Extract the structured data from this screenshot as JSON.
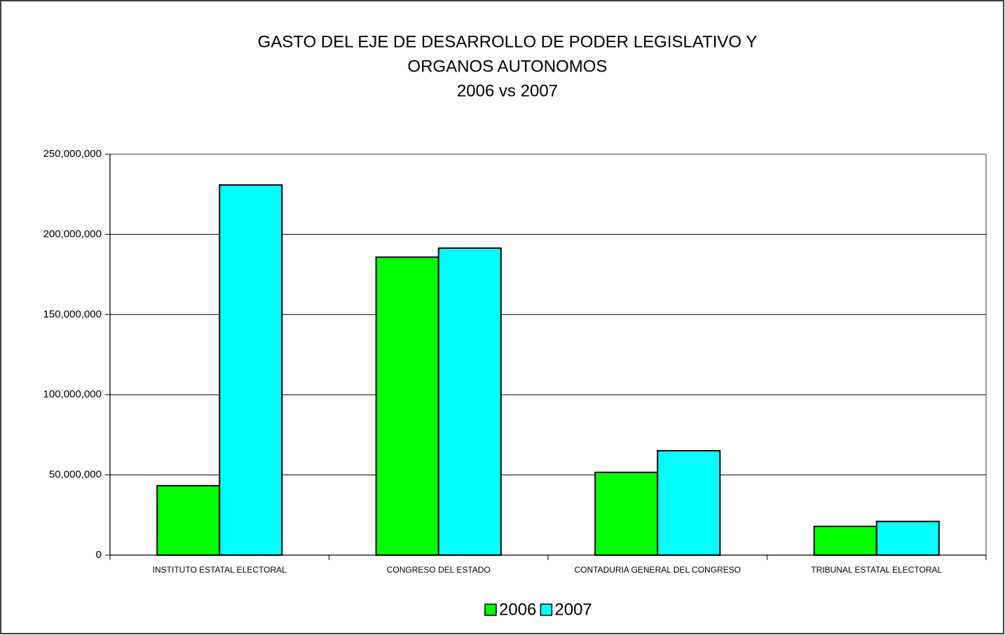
{
  "chart_data": {
    "type": "bar",
    "title": [
      "GASTO DEL EJE DE DESARROLLO DE PODER LEGISLATIVO Y",
      "ORGANOS AUTONOMOS"
    ],
    "subtitle": "2006 vs 2007",
    "categories": [
      "INSTITUTO ESTATAL ELECTORAL",
      "CONGRESO DEL ESTADO",
      "CONTADURIA GENERAL DEL CONGRESO",
      "TRIBUNAL ESTATAL ELECTORAL"
    ],
    "series": [
      {
        "name": "2006",
        "color": "#00ff00",
        "values": [
          43300000,
          185800000,
          51600000,
          17900000
        ]
      },
      {
        "name": "2007",
        "color": "#00ffff",
        "values": [
          230800000,
          191400000,
          65100000,
          21000000
        ]
      }
    ],
    "ylim": [
      0,
      250000000
    ],
    "yticks": [
      0,
      {
        "value": 50000000,
        "label": "50,000,000"
      },
      {
        "value": 100000000,
        "label": "100,000,000"
      },
      {
        "value": 150000000,
        "label": "150,000,000"
      },
      {
        "value": 200000000,
        "label": "200,000,000"
      },
      {
        "value": 250000000,
        "label": "250,000,000"
      }
    ],
    "grid": true,
    "legend": "bottom"
  }
}
